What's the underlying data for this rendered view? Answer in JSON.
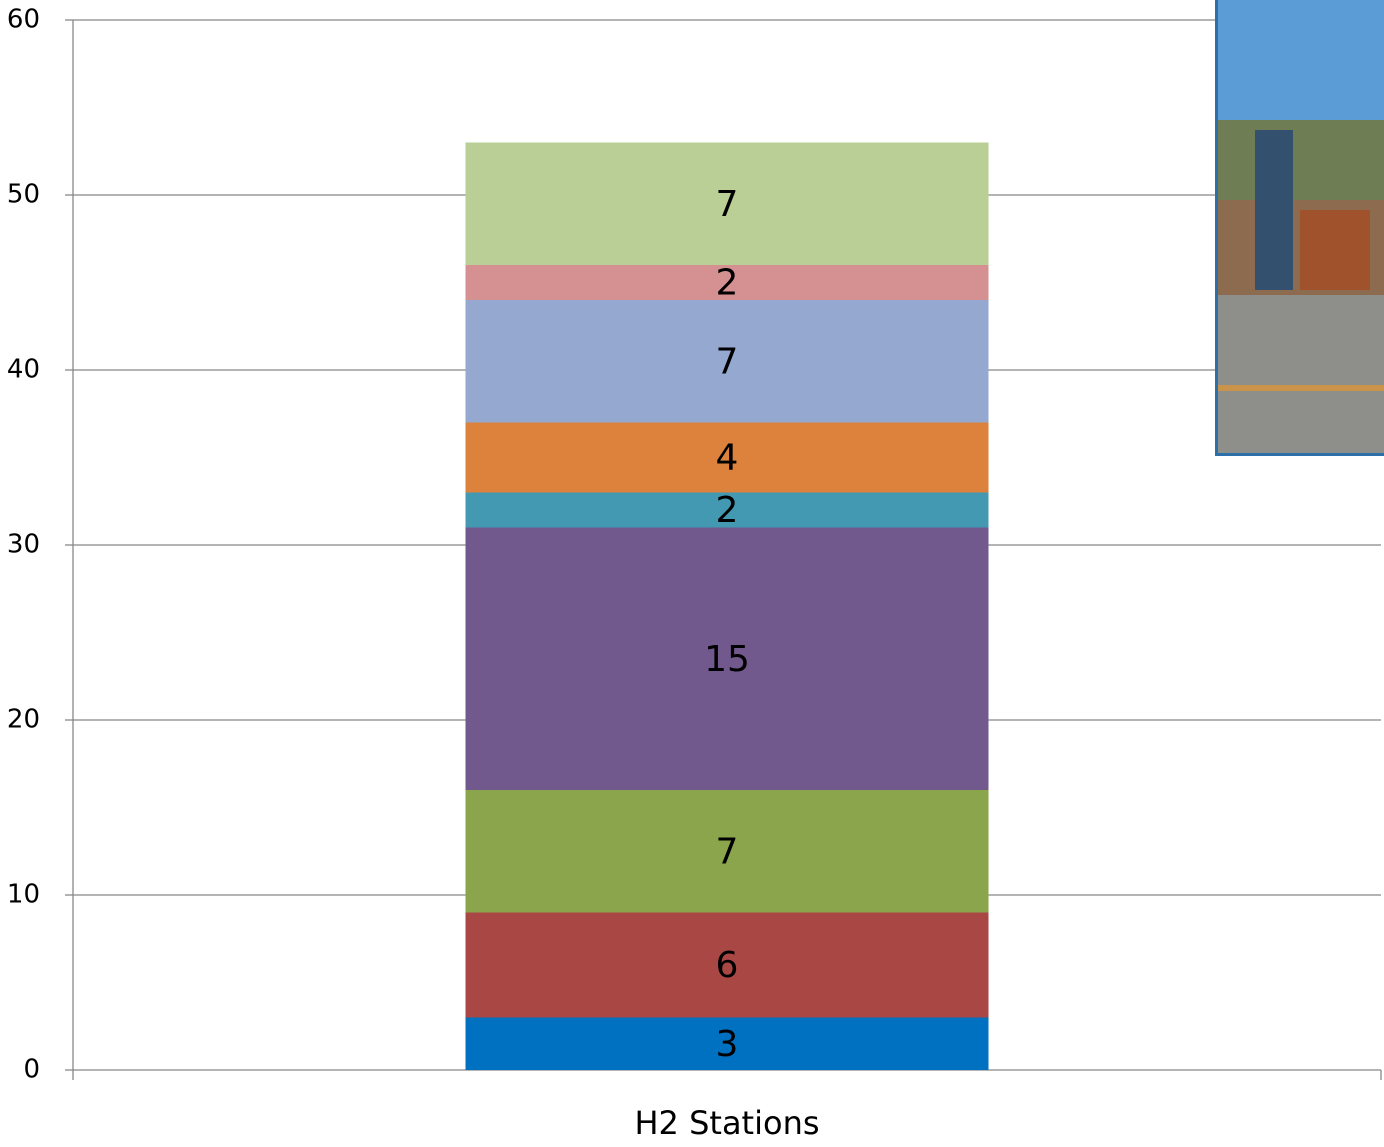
{
  "chart_data": {
    "type": "stacked_bar",
    "categories": [
      "H2 Stations"
    ],
    "series": [
      {
        "color": "#0070c0",
        "values": [
          3
        ]
      },
      {
        "color": "#a94744",
        "values": [
          6
        ]
      },
      {
        "color": "#8aa54c",
        "values": [
          7
        ]
      },
      {
        "color": "#71598e",
        "values": [
          15
        ]
      },
      {
        "color": "#4399b1",
        "values": [
          2
        ]
      },
      {
        "color": "#dc823d",
        "values": [
          4
        ]
      },
      {
        "color": "#95a9d0",
        "values": [
          7
        ]
      },
      {
        "color": "#d59191",
        "values": [
          2
        ]
      },
      {
        "color": "#bacf95",
        "values": [
          7
        ]
      }
    ],
    "ylim": [
      0,
      60
    ],
    "yticks": [
      0,
      10,
      20,
      30,
      40,
      50,
      60
    ],
    "grid": true
  }
}
